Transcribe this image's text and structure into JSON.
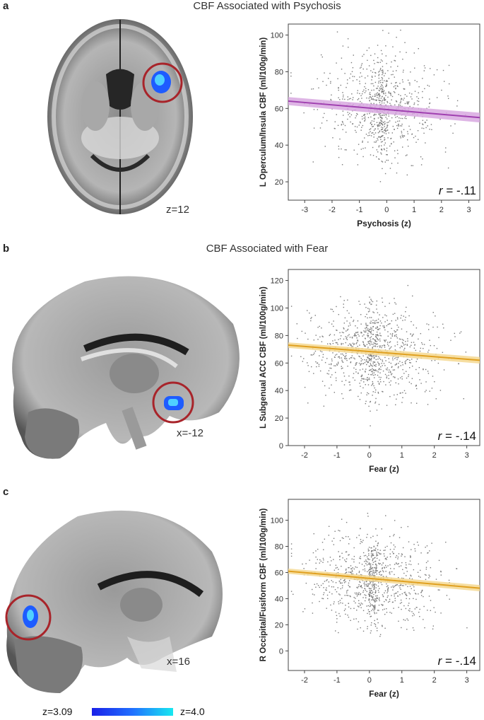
{
  "panels": [
    {
      "label": "a",
      "title": "CBF Associated with Psychosis",
      "slice": "z=12"
    },
    {
      "label": "b",
      "title": "CBF Associated with Fear",
      "slice": "x=-12"
    },
    {
      "label": "c",
      "title": "",
      "slice": "x=16"
    }
  ],
  "legend": {
    "low": "z=3.09",
    "high": "z=4.0",
    "low_color": "#1a20e8",
    "high_color": "#18e8f0"
  },
  "colors": {
    "circle": "#a8242a",
    "roi_blue": "#1e5cff",
    "psychosis_line": "#a040b0",
    "psychosis_band": "#d8a8e0",
    "fear_line": "#e0a020",
    "fear_band": "#f5d890",
    "point": "#7a7a7a"
  },
  "chart_data": [
    {
      "type": "scatter",
      "xlabel": "Psychosis (z)",
      "ylabel": "L Operculum/Insula CBF (ml/100g/min)",
      "xlim": [
        -3.6,
        3.4
      ],
      "ylim": [
        10,
        106
      ],
      "xticks": [
        -3,
        -2,
        -1,
        0,
        1,
        2,
        3
      ],
      "yticks": [
        20,
        40,
        60,
        80,
        100
      ],
      "fit": {
        "x": [
          -3.6,
          3.4
        ],
        "y": [
          64,
          55
        ]
      },
      "band_halfwidth": 2.2,
      "annotation": "r = -.11",
      "r_symbol": "r",
      "r_value": " = -.11",
      "points_n": 850,
      "x_center": -0.2,
      "x_spread": 1.1,
      "y_center": 60,
      "y_spread": 14
    },
    {
      "type": "scatter",
      "xlabel": "Fear (z)",
      "ylabel": "L Subgenual ACC CBF (ml/100g/min)",
      "xlim": [
        -2.5,
        3.4
      ],
      "ylim": [
        0,
        128
      ],
      "xticks": [
        -2,
        -1,
        0,
        1,
        2,
        3
      ],
      "yticks": [
        0,
        20,
        40,
        60,
        80,
        100,
        120
      ],
      "fit": {
        "x": [
          -2.5,
          3.4
        ],
        "y": [
          73,
          62
        ]
      },
      "band_halfwidth": 2.0,
      "annotation": "r = -.14",
      "r_symbol": "r",
      "r_value": " = -.14",
      "points_n": 950,
      "x_center": 0.1,
      "x_spread": 1.0,
      "y_center": 68,
      "y_spread": 16
    },
    {
      "type": "scatter",
      "xlabel": "Fear (z)",
      "ylabel": "R Occipital/Fusiform CBF (ml/100g/min)",
      "xlim": [
        -2.5,
        3.4
      ],
      "ylim": [
        -15,
        116
      ],
      "xticks": [
        -2,
        -1,
        0,
        1,
        2,
        3
      ],
      "yticks": [
        0,
        20,
        40,
        60,
        80,
        100
      ],
      "fit": {
        "x": [
          -2.5,
          3.4
        ],
        "y": [
          61,
          48
        ]
      },
      "band_halfwidth": 2.0,
      "annotation": "r = -.14",
      "r_symbol": "r",
      "r_value": " = -.14",
      "points_n": 950,
      "x_center": 0.1,
      "x_spread": 1.0,
      "y_center": 55,
      "y_spread": 17
    }
  ]
}
